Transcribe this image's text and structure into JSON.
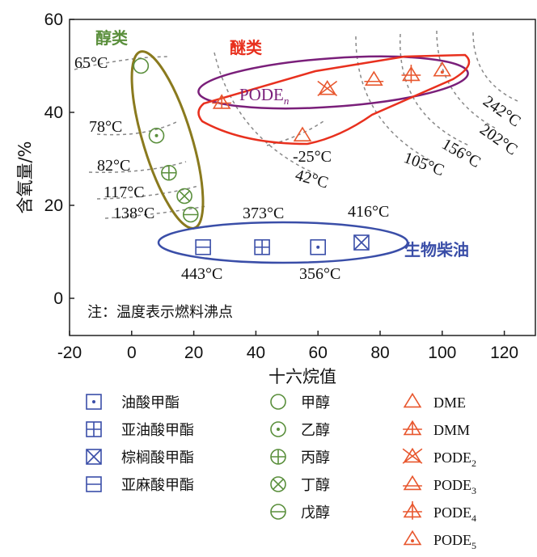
{
  "chart_data": {
    "type": "scatter",
    "xlabel": "十六烷值",
    "ylabel": "含氧量/%",
    "xlim": [
      -20,
      130
    ],
    "ylim": [
      -8,
      60
    ],
    "xticks": [
      "-20",
      "0",
      "20",
      "40",
      "60",
      "80",
      "100",
      "120"
    ],
    "yticks": [
      "0",
      "20",
      "40",
      "60"
    ],
    "note": "注：温度表示燃料沸点",
    "groups": {
      "alcohols": {
        "label": "醇类",
        "color": "#5a8f3c",
        "ellipse_color": "#8a7a1e"
      },
      "ethers": {
        "label": "醚类",
        "color": "#e8572e"
      },
      "pode": {
        "label": "PODE",
        "subscript": "n",
        "color": "#7a1f7a"
      },
      "biodiesel": {
        "label": "生物柴油",
        "color": "#3a4ea8"
      }
    },
    "series": [
      {
        "name": "油酸甲酯",
        "group": "biodiesel",
        "marker": "square-dot",
        "x": 60,
        "y": 11,
        "temp": "356°C"
      },
      {
        "name": "亚油酸甲酯",
        "group": "biodiesel",
        "marker": "square-plus",
        "x": 42,
        "y": 11,
        "temp": "373°C"
      },
      {
        "name": "棕榈酸甲酯",
        "group": "biodiesel",
        "marker": "square-x",
        "x": 74,
        "y": 12,
        "temp": "416°C"
      },
      {
        "name": "亚麻酸甲酯",
        "group": "biodiesel",
        "marker": "square-line",
        "x": 23,
        "y": 11,
        "temp": "443°C"
      },
      {
        "name": "甲醇",
        "group": "alcohols",
        "marker": "circle",
        "x": 3,
        "y": 50,
        "temp": "65°C"
      },
      {
        "name": "乙醇",
        "group": "alcohols",
        "marker": "circle-dot",
        "x": 8,
        "y": 35,
        "temp": "78°C"
      },
      {
        "name": "丙醇",
        "group": "alcohols",
        "marker": "circle-plus",
        "x": 12,
        "y": 27,
        "temp": "82°C"
      },
      {
        "name": "丁醇",
        "group": "alcohols",
        "marker": "circle-x",
        "x": 17,
        "y": 22,
        "temp": "117°C"
      },
      {
        "name": "戊醇",
        "group": "alcohols",
        "marker": "circle-line",
        "x": 19,
        "y": 18,
        "temp": "138°C"
      },
      {
        "name": "DME",
        "group": "ethers",
        "marker": "triangle",
        "x": 55,
        "y": 35,
        "temp": "-25°C"
      },
      {
        "name": "DMM",
        "group": "ethers",
        "marker": "triangle-plus",
        "x": 29,
        "y": 42,
        "temp": "42°C"
      },
      {
        "name": "PODE",
        "subscript": "2",
        "group": "ethers",
        "marker": "triangle-x",
        "x": 63,
        "y": 45,
        "temp": "105°C"
      },
      {
        "name": "PODE",
        "subscript": "3",
        "group": "ethers",
        "marker": "triangle-line",
        "x": 78,
        "y": 47,
        "temp": "156°C"
      },
      {
        "name": "PODE",
        "subscript": "4",
        "group": "ethers",
        "marker": "triangle-vplus",
        "x": 90,
        "y": 48,
        "temp": "202°C"
      },
      {
        "name": "PODE",
        "subscript": "5",
        "group": "ethers",
        "marker": "triangle-dot",
        "x": 100,
        "y": 49,
        "temp": "242°C"
      }
    ]
  }
}
